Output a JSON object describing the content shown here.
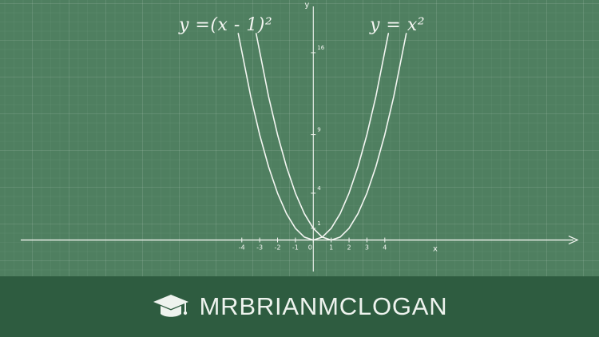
{
  "chart_data": {
    "type": "line",
    "title": "",
    "xlabel": "x",
    "ylabel": "y",
    "x_ticks": [
      "-4",
      "-3",
      "-2",
      "-1",
      "0",
      "1",
      "2",
      "3",
      "4"
    ],
    "y_ticks": [
      "1",
      "4",
      "9",
      "16"
    ],
    "xlim": [
      -16.5,
      15
    ],
    "ylim": [
      -3.1,
      20.5
    ],
    "grid": true,
    "series": [
      {
        "name": "y =(x - 1)²",
        "x": [
          -3.2,
          -2.5,
          -2,
          -1.5,
          -1,
          -0.5,
          0,
          0.5,
          1,
          1.5,
          2,
          2.5,
          3,
          3.5,
          4,
          4.5,
          5.2
        ],
        "y": [
          17.64,
          12.25,
          9,
          6.25,
          4,
          2.25,
          1,
          0.25,
          0,
          0.25,
          1,
          2.25,
          4,
          6.25,
          9,
          12.25,
          17.64
        ]
      },
      {
        "name": "y = x²",
        "x": [
          -4.2,
          -3.5,
          -3,
          -2.5,
          -2,
          -1.5,
          -1,
          -0.5,
          0,
          0.5,
          1,
          1.5,
          2,
          2.5,
          3,
          3.5,
          4.2
        ],
        "y": [
          17.64,
          12.25,
          9,
          6.25,
          4,
          2.25,
          1,
          0.25,
          0,
          0.25,
          1,
          2.25,
          4,
          6.25,
          9,
          12.25,
          17.64
        ]
      }
    ]
  },
  "brand": {
    "name": "MRBRIANMCLOGAN",
    "icon": "graduation-cap-icon"
  },
  "colors": {
    "board": "#4f7f60",
    "banner": "#2e5c40",
    "chalk": "#f4f6f2"
  }
}
